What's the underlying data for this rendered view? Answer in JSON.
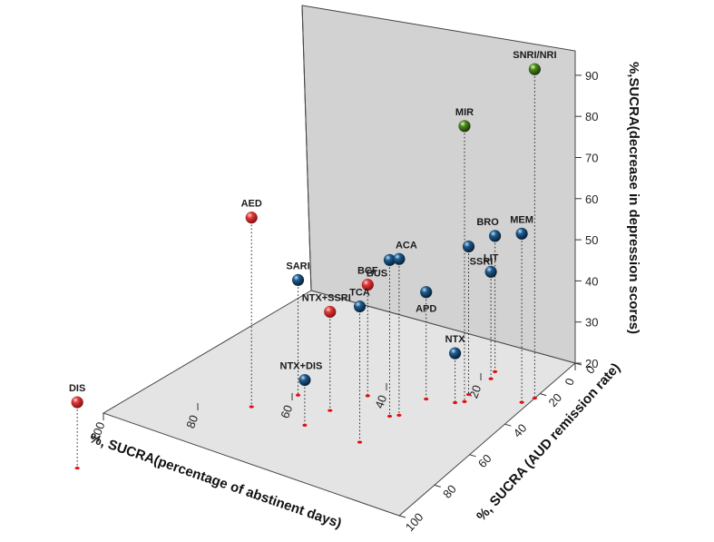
{
  "chart_data": {
    "type": "scatter3d",
    "title": "",
    "xlabel": "%, SUCRA(percentage of abstinent days)",
    "ylabel": "%, SUCRA (AUD remission rate)",
    "zlabel": "%,SUCRA(decrease in depression scores)",
    "xlim": [
      0,
      100
    ],
    "ylim": [
      0,
      100
    ],
    "zlim": [
      20,
      95
    ],
    "xticks": [
      "0",
      "20",
      "40",
      "60",
      "80",
      "100"
    ],
    "yticks": [
      "0",
      "20",
      "40",
      "60",
      "80",
      "100"
    ],
    "zticks": [
      "20",
      "30",
      "40",
      "50",
      "60",
      "70",
      "80",
      "90"
    ],
    "colors": {
      "red": "#d42424",
      "blue": "#123f63",
      "green": "#3f6b14",
      "stem": "#222222",
      "foot": "#e01010"
    },
    "points": [
      {
        "label": "DIS",
        "x": 91,
        "y": 39,
        "z": 36,
        "color": "red"
      },
      {
        "label": "AED",
        "x": 66,
        "y": 7,
        "z": 66,
        "color": "red"
      },
      {
        "label": "SARI",
        "x": 58,
        "y": 2,
        "z": 48,
        "color": "blue"
      },
      {
        "label": "BCF",
        "x": 41,
        "y": 8,
        "z": 47,
        "color": "red"
      },
      {
        "label": "NTX+SSRI",
        "x": 46,
        "y": 16,
        "z": 44,
        "color": "red"
      },
      {
        "label": "NTX+DIS",
        "x": 48,
        "y": 25,
        "z": 31,
        "color": "blue"
      },
      {
        "label": "BUS",
        "x": 30,
        "y": 25,
        "z": 58,
        "color": "blue"
      },
      {
        "label": "ACA",
        "x": 28,
        "y": 25,
        "z": 58,
        "color": "blue"
      },
      {
        "label": "TCA",
        "x": 30,
        "y": 42,
        "z": 53,
        "color": "blue"
      },
      {
        "label": "APD",
        "x": 26,
        "y": 15,
        "z": 46,
        "color": "blue"
      },
      {
        "label": "NTX",
        "x": 18,
        "y": 20,
        "z": 32,
        "color": "blue"
      },
      {
        "label": "BRO",
        "x": 17,
        "y": 0,
        "z": 53,
        "color": "blue"
      },
      {
        "label": "LIT",
        "x": 16,
        "y": 5,
        "z": 46,
        "color": "blue"
      },
      {
        "label": "SSRI",
        "x": 17,
        "y": 15,
        "z": 56,
        "color": "blue"
      },
      {
        "label": "MIR",
        "x": 16,
        "y": 20,
        "z": 87,
        "color": "green"
      },
      {
        "label": "MEM",
        "x": 2,
        "y": 25,
        "z": 61,
        "color": "blue"
      },
      {
        "label": "SNRI/NRI",
        "x": 0,
        "y": 23,
        "z": 100,
        "color": "green"
      }
    ]
  }
}
